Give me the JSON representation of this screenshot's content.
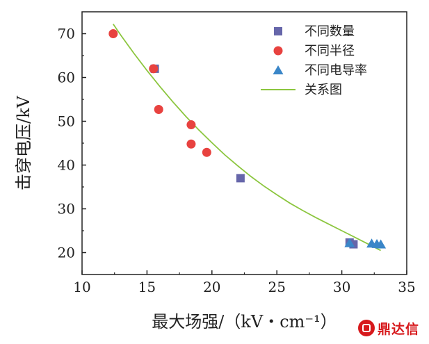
{
  "chart_data": {
    "type": "scatter",
    "xlabel": "最大场强/（kV・cm⁻¹）",
    "ylabel": "击穿电压/kV",
    "xlim": [
      10,
      35
    ],
    "ylim": [
      15,
      75
    ],
    "x_ticks": [
      10,
      15,
      20,
      25,
      30,
      35
    ],
    "y_ticks": [
      20,
      30,
      40,
      50,
      60,
      70
    ],
    "grid": false,
    "legend_position": "top-right",
    "series": [
      {
        "name": "不同数量",
        "marker": "square",
        "color": "#6666aa",
        "points": [
          [
            15.6,
            62
          ],
          [
            22.2,
            37
          ],
          [
            30.6,
            22.3
          ],
          [
            30.9,
            21.9
          ]
        ]
      },
      {
        "name": "不同半径",
        "marker": "circle",
        "color": "#e8423f",
        "points": [
          [
            12.4,
            70
          ],
          [
            15.5,
            62
          ],
          [
            15.9,
            52.7
          ],
          [
            18.4,
            49.2
          ],
          [
            18.4,
            44.8
          ],
          [
            19.6,
            42.9
          ]
        ]
      },
      {
        "name": "不同电导率",
        "marker": "triangle",
        "color": "#3a86c8",
        "points": [
          [
            30.6,
            22.2
          ],
          [
            32.3,
            22.1
          ],
          [
            32.7,
            22.0
          ],
          [
            33.0,
            21.9
          ]
        ]
      },
      {
        "name": "关系图",
        "marker": "line",
        "color": "#8cc63f",
        "x": [
          12.4,
          13,
          14,
          15,
          16,
          17,
          18,
          19,
          20,
          21,
          22,
          23,
          24,
          25,
          26,
          27,
          28,
          29,
          30,
          31,
          32,
          33
        ],
        "y": [
          72.2,
          69.6,
          65.5,
          61.6,
          57.9,
          54.4,
          51.1,
          48.0,
          45.1,
          42.3,
          39.8,
          37.4,
          35.2,
          33.2,
          31.3,
          29.6,
          28.0,
          26.5,
          25.0,
          23.5,
          22.0,
          20.5
        ]
      }
    ]
  },
  "watermark": {
    "text": "鼎达信"
  },
  "colors": {
    "axis": "#222222",
    "watermark": "#d7191c"
  }
}
